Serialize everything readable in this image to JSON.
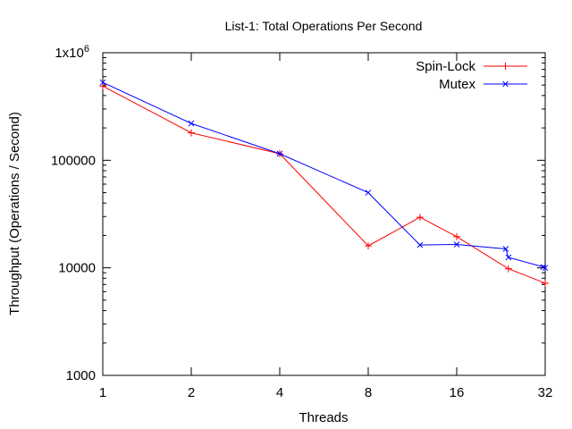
{
  "chart_data": {
    "type": "line",
    "title": "List-1: Total Operations Per Second",
    "xlabel": "Threads",
    "ylabel": "Throughput (Operations / Second)",
    "x_scale": "log2",
    "y_scale": "log10",
    "xlim": [
      1,
      32
    ],
    "ylim": [
      1000,
      1000000
    ],
    "x_ticks": [
      1,
      2,
      4,
      8,
      16,
      32
    ],
    "x_tick_labels": [
      "1",
      "2",
      "4",
      "8",
      "16",
      "32"
    ],
    "y_ticks": [
      1000,
      10000,
      100000,
      1000000
    ],
    "y_tick_labels": [
      "1000",
      "10000",
      "100000",
      "1x10"
    ],
    "y_top_label_exponent": "6",
    "grid": false,
    "legend_position": "top-right",
    "series": [
      {
        "name": "Spin-Lock",
        "color": "#ff0000",
        "marker": "plus",
        "x": [
          1,
          2,
          4,
          8,
          12,
          16,
          24,
          32
        ],
        "y": [
          490000,
          180000,
          115000,
          16000,
          29500,
          19500,
          9800,
          7200
        ]
      },
      {
        "name": "Mutex",
        "color": "#0000ff",
        "marker": "cross",
        "x": [
          1,
          2,
          4,
          8,
          12,
          16,
          23.5,
          24,
          31.5,
          32
        ],
        "y": [
          530000,
          220000,
          115000,
          50000,
          16300,
          16500,
          15000,
          12500,
          10200,
          10000
        ]
      }
    ]
  }
}
